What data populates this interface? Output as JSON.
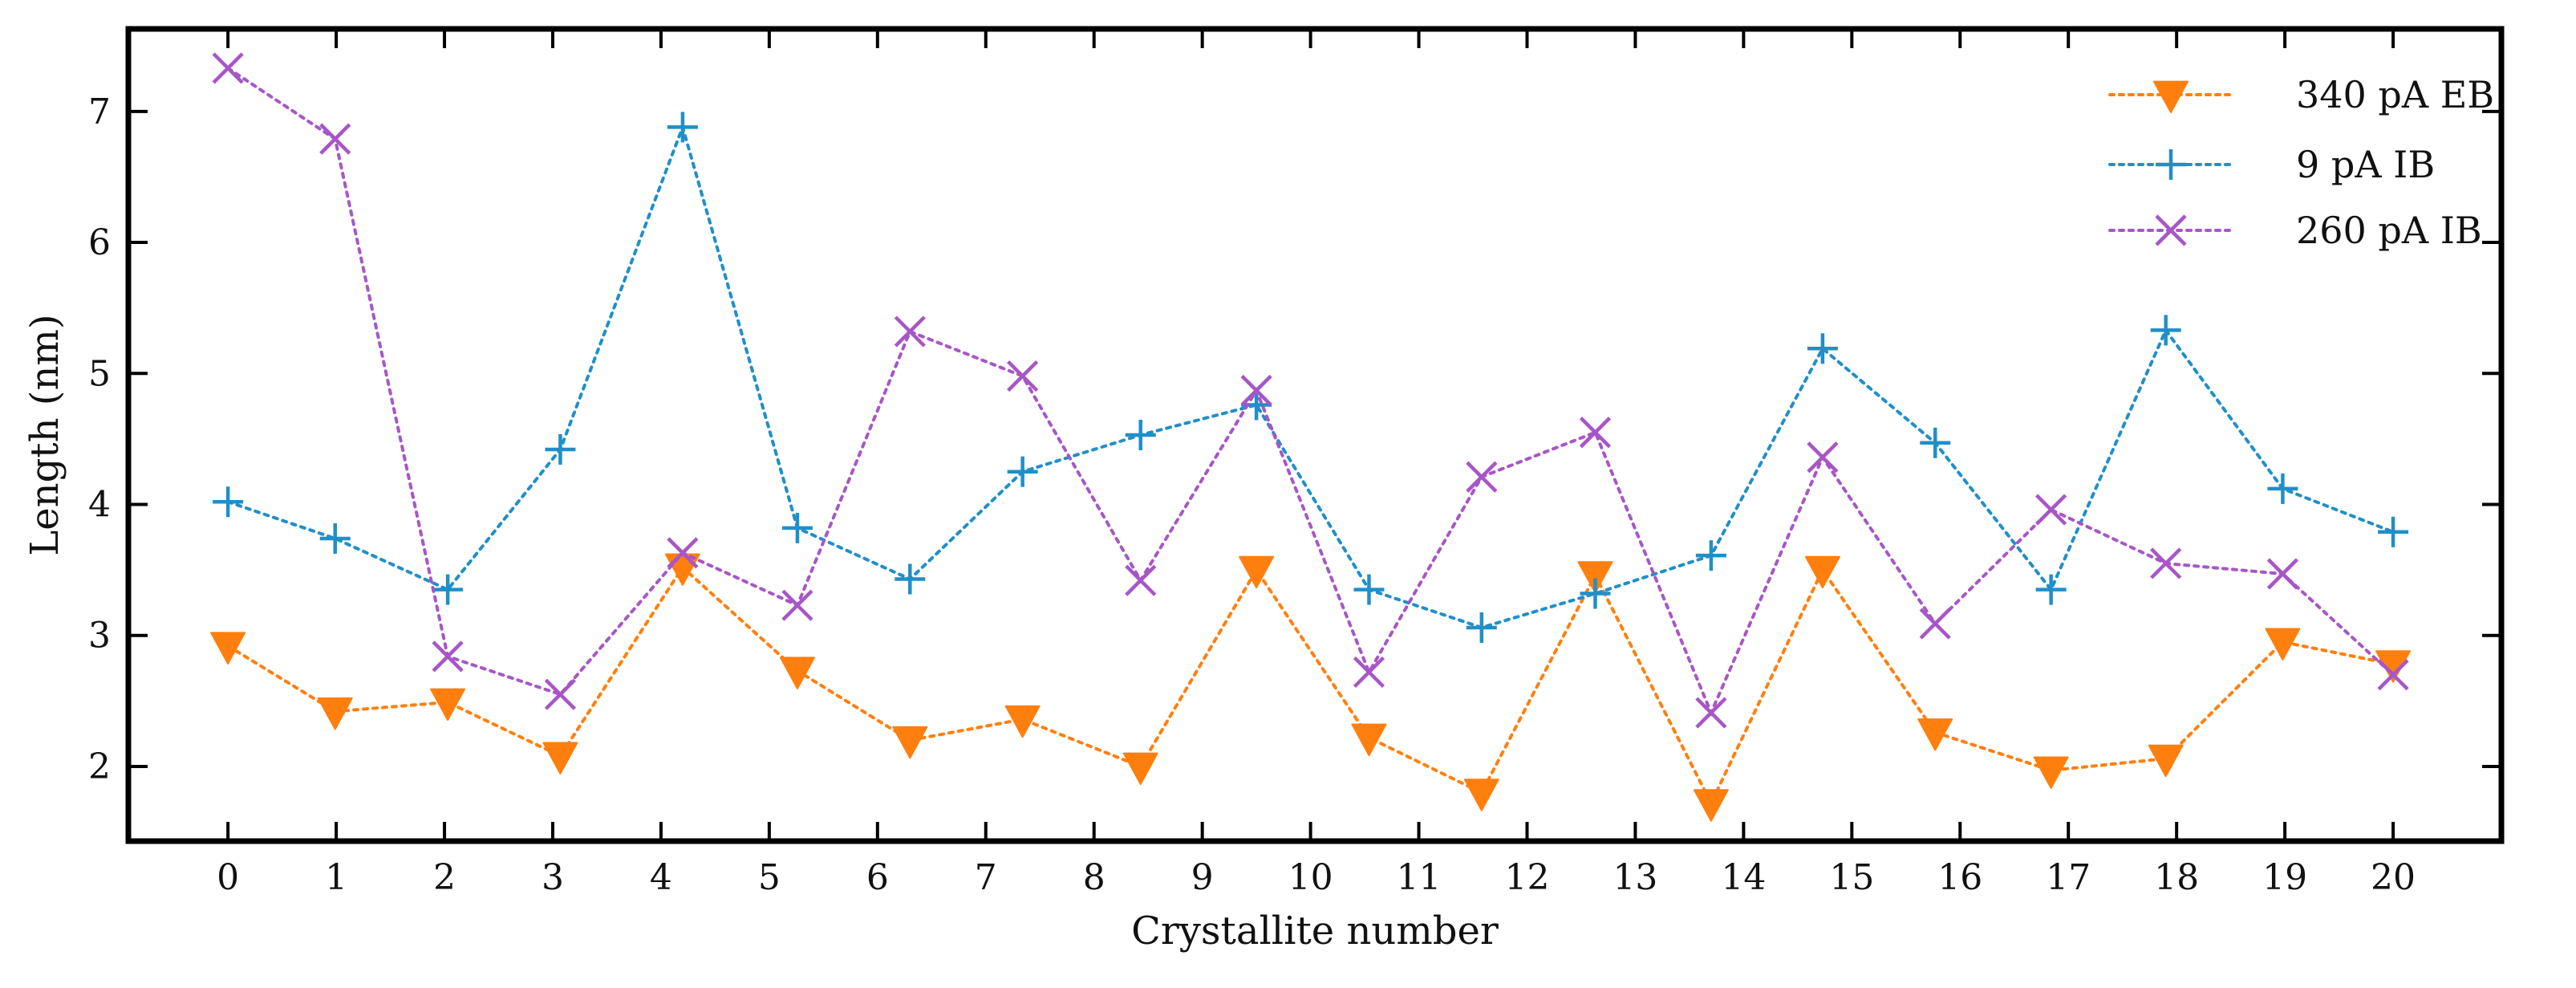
{
  "chart_data": {
    "type": "line",
    "title": "",
    "xlabel": "Crystallite number",
    "ylabel": "Length (nm)",
    "x_ticks": [
      "0",
      "1",
      "2",
      "3",
      "4",
      "5",
      "6",
      "7",
      "8",
      "9",
      "10",
      "11",
      "12",
      "13",
      "14",
      "15",
      "16",
      "17",
      "18",
      "19",
      "20"
    ],
    "y_ticks": [
      "2",
      "3",
      "4",
      "5",
      "6",
      "7"
    ],
    "y_tick_values": [
      2,
      3,
      4,
      5,
      6,
      7
    ],
    "xlim": [
      -0.92,
      21.0
    ],
    "ylim": [
      1.43,
      7.63
    ],
    "grid": false,
    "legend_position": "top-right",
    "series": [
      {
        "name": "340 pA EB",
        "color": "#ff7f0e",
        "marker": "triangle-down",
        "x": [
          0.0,
          0.99,
          2.03,
          3.07,
          4.2,
          5.26,
          6.3,
          7.34,
          8.43,
          9.5,
          10.54,
          11.58,
          12.63,
          13.7,
          14.73,
          15.77,
          16.84,
          17.9,
          18.98,
          20.0
        ],
        "values": [
          2.92,
          2.42,
          2.49,
          2.08,
          3.52,
          2.73,
          2.2,
          2.36,
          2.0,
          3.5,
          2.22,
          1.8,
          3.46,
          1.72,
          3.5,
          2.26,
          1.97,
          2.06,
          2.95,
          2.78
        ]
      },
      {
        "name": "9 pA IB",
        "color": "#1f8fc9",
        "marker": "plus",
        "x": [
          0.0,
          0.99,
          2.03,
          3.07,
          4.2,
          5.26,
          6.3,
          7.34,
          8.43,
          9.5,
          10.54,
          11.58,
          12.63,
          13.7,
          14.73,
          15.77,
          16.84,
          17.9,
          18.98,
          20.0
        ],
        "values": [
          4.02,
          3.74,
          3.35,
          4.42,
          6.88,
          3.82,
          3.43,
          4.25,
          4.53,
          4.76,
          3.35,
          3.06,
          3.32,
          3.61,
          5.19,
          4.47,
          3.35,
          5.33,
          4.12,
          3.79
        ]
      },
      {
        "name": "260 pA IB",
        "color": "#a855c8",
        "marker": "x",
        "x": [
          0.0,
          0.99,
          2.03,
          3.07,
          4.2,
          5.26,
          6.3,
          7.34,
          8.43,
          9.5,
          10.54,
          11.58,
          12.63,
          13.7,
          14.73,
          15.77,
          16.84,
          17.9,
          18.98,
          20.0
        ],
        "values": [
          7.33,
          6.79,
          2.84,
          2.55,
          3.63,
          3.23,
          5.32,
          4.98,
          3.42,
          4.87,
          2.72,
          4.21,
          4.55,
          2.41,
          4.36,
          3.09,
          3.96,
          3.55,
          3.47,
          2.7
        ]
      }
    ]
  }
}
